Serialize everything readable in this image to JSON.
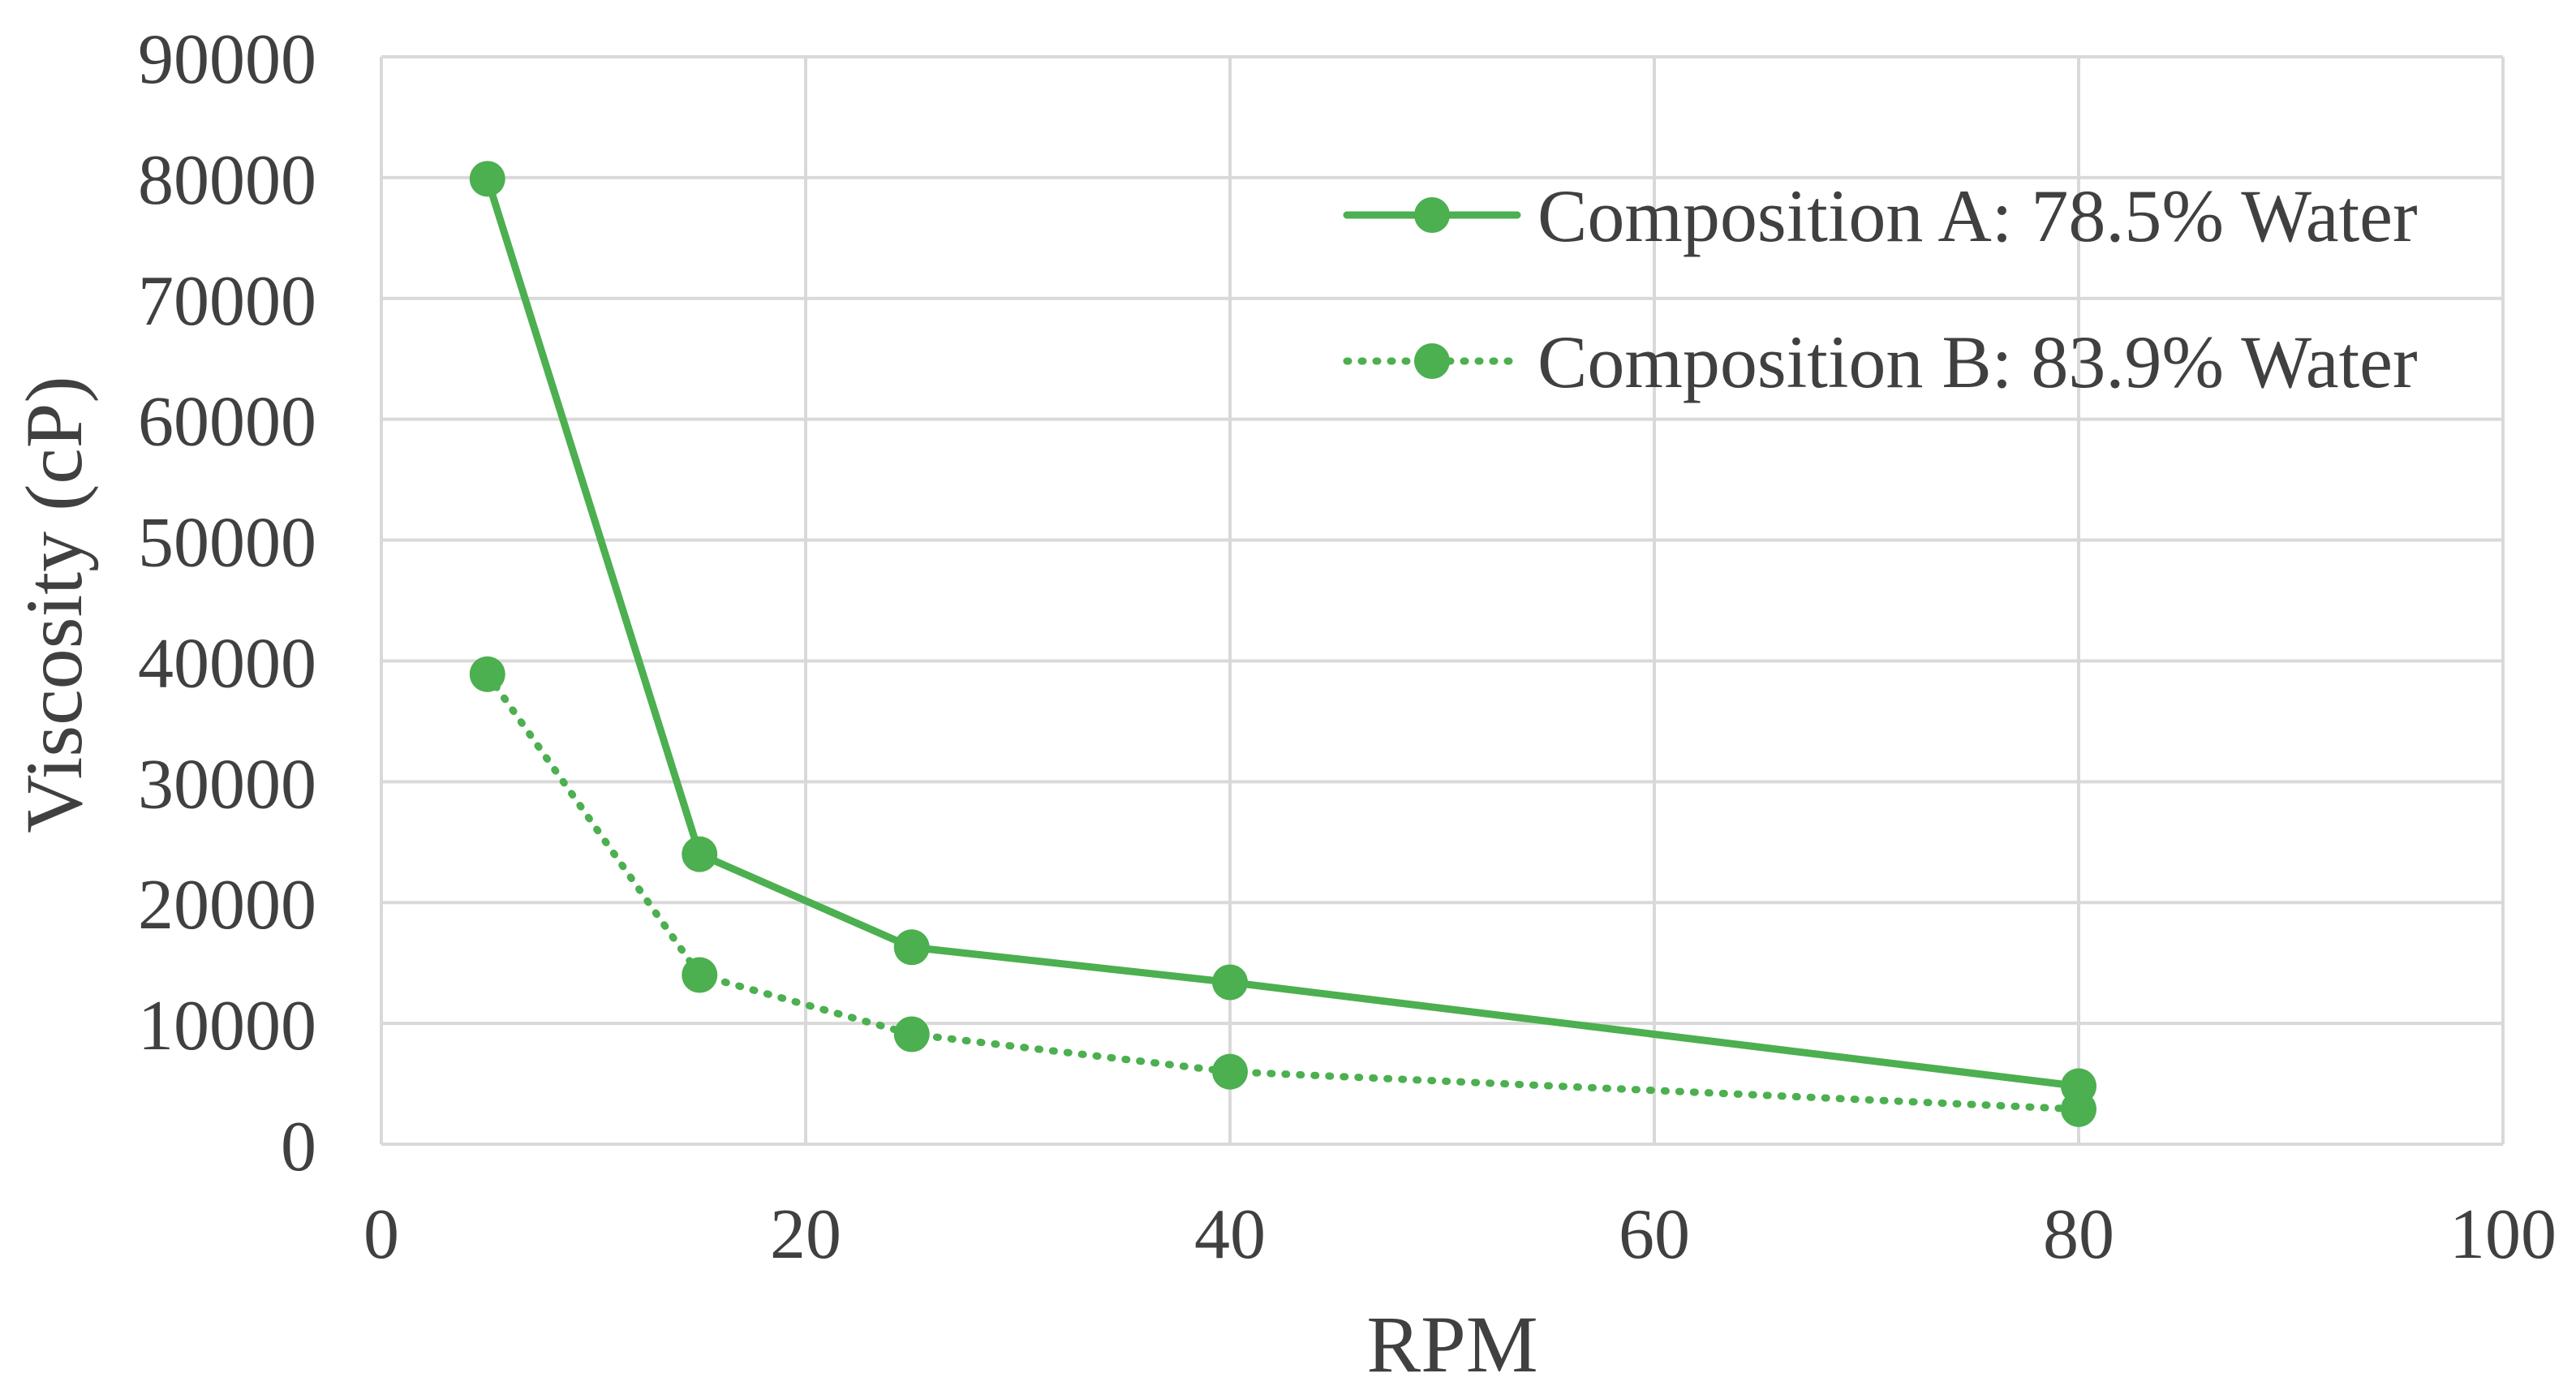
{
  "chart_data": {
    "type": "line",
    "title": "",
    "xlabel": "RPM",
    "ylabel": "Viscosity (cP)",
    "xlim": [
      0,
      100
    ],
    "ylim": [
      0,
      90000
    ],
    "xticks": [
      0,
      20,
      40,
      60,
      80,
      100
    ],
    "yticks": [
      0,
      10000,
      20000,
      30000,
      40000,
      50000,
      60000,
      70000,
      80000,
      90000
    ],
    "grid": true,
    "legend_position": "top-right",
    "series": [
      {
        "name": "Composition A: 78.5% Water",
        "line_style": "solid",
        "marker": "circle",
        "color": "#4CAF50",
        "x": [
          5,
          15,
          25,
          40,
          80
        ],
        "y": [
          79900,
          24000,
          16300,
          13400,
          4800
        ]
      },
      {
        "name": "Composition B: 83.9% Water",
        "line_style": "dotted",
        "marker": "circle",
        "color": "#4CAF50",
        "x": [
          5,
          15,
          25,
          40,
          80
        ],
        "y": [
          38900,
          14000,
          9100,
          6000,
          2900
        ]
      }
    ]
  }
}
